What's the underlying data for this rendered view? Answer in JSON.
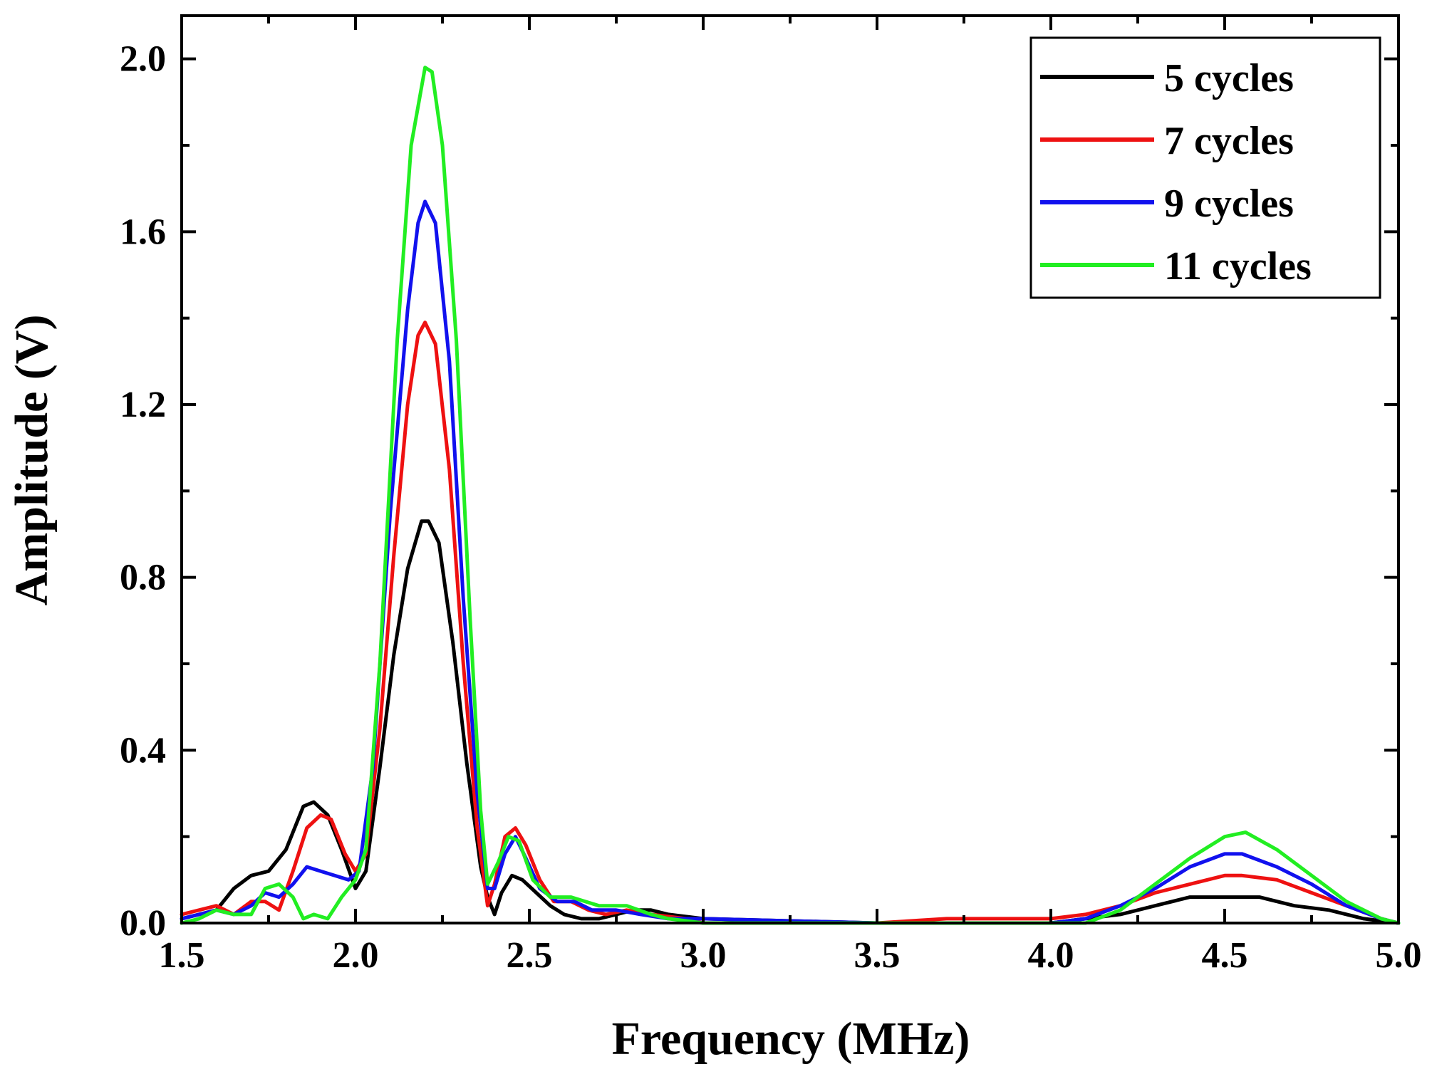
{
  "chart_data": {
    "type": "line",
    "title": "",
    "xlabel": "Frequency (MHz)",
    "ylabel": "Amplitude (V)",
    "xlim": [
      1.5,
      5.0
    ],
    "ylim": [
      0.0,
      2.1
    ],
    "xticks": [
      1.5,
      2.0,
      2.5,
      3.0,
      3.5,
      4.0,
      4.5,
      5.0
    ],
    "xtick_labels": [
      "1.5",
      "2.0",
      "2.5",
      "3.0",
      "3.5",
      "4.0",
      "4.5",
      "5.0"
    ],
    "yticks": [
      0.0,
      0.4,
      0.8,
      1.2,
      1.6,
      2.0
    ],
    "ytick_labels": [
      "0.0",
      "0.4",
      "0.8",
      "1.2",
      "1.6",
      "2.0"
    ],
    "grid": false,
    "legend_position": "top-right",
    "series": [
      {
        "name": "5 cycles",
        "color": "#000000",
        "points": [
          [
            1.5,
            0.01
          ],
          [
            1.55,
            0.02
          ],
          [
            1.6,
            0.03
          ],
          [
            1.65,
            0.08
          ],
          [
            1.7,
            0.11
          ],
          [
            1.75,
            0.12
          ],
          [
            1.8,
            0.17
          ],
          [
            1.85,
            0.27
          ],
          [
            1.88,
            0.28
          ],
          [
            1.92,
            0.25
          ],
          [
            1.96,
            0.17
          ],
          [
            2.0,
            0.08
          ],
          [
            2.03,
            0.12
          ],
          [
            2.07,
            0.36
          ],
          [
            2.11,
            0.62
          ],
          [
            2.15,
            0.82
          ],
          [
            2.19,
            0.93
          ],
          [
            2.21,
            0.93
          ],
          [
            2.24,
            0.88
          ],
          [
            2.28,
            0.65
          ],
          [
            2.32,
            0.37
          ],
          [
            2.36,
            0.13
          ],
          [
            2.38,
            0.06
          ],
          [
            2.4,
            0.02
          ],
          [
            2.42,
            0.07
          ],
          [
            2.45,
            0.11
          ],
          [
            2.48,
            0.1
          ],
          [
            2.52,
            0.07
          ],
          [
            2.56,
            0.04
          ],
          [
            2.6,
            0.02
          ],
          [
            2.65,
            0.01
          ],
          [
            2.7,
            0.01
          ],
          [
            2.75,
            0.02
          ],
          [
            2.8,
            0.03
          ],
          [
            2.85,
            0.03
          ],
          [
            2.9,
            0.02
          ],
          [
            3.0,
            0.01
          ],
          [
            3.5,
            0.0
          ],
          [
            4.0,
            0.0
          ],
          [
            4.1,
            0.01
          ],
          [
            4.2,
            0.02
          ],
          [
            4.3,
            0.04
          ],
          [
            4.4,
            0.06
          ],
          [
            4.5,
            0.06
          ],
          [
            4.55,
            0.06
          ],
          [
            4.6,
            0.06
          ],
          [
            4.7,
            0.04
          ],
          [
            4.8,
            0.03
          ],
          [
            4.9,
            0.01
          ],
          [
            5.0,
            0.0
          ]
        ]
      },
      {
        "name": "7 cycles",
        "color": "#ee1111",
        "points": [
          [
            1.5,
            0.02
          ],
          [
            1.55,
            0.03
          ],
          [
            1.6,
            0.04
          ],
          [
            1.65,
            0.02
          ],
          [
            1.7,
            0.05
          ],
          [
            1.74,
            0.05
          ],
          [
            1.78,
            0.03
          ],
          [
            1.82,
            0.12
          ],
          [
            1.86,
            0.22
          ],
          [
            1.9,
            0.25
          ],
          [
            1.93,
            0.24
          ],
          [
            1.97,
            0.16
          ],
          [
            2.0,
            0.12
          ],
          [
            2.03,
            0.16
          ],
          [
            2.07,
            0.45
          ],
          [
            2.11,
            0.85
          ],
          [
            2.15,
            1.2
          ],
          [
            2.18,
            1.36
          ],
          [
            2.2,
            1.39
          ],
          [
            2.23,
            1.34
          ],
          [
            2.27,
            1.05
          ],
          [
            2.31,
            0.6
          ],
          [
            2.35,
            0.22
          ],
          [
            2.38,
            0.04
          ],
          [
            2.4,
            0.09
          ],
          [
            2.43,
            0.2
          ],
          [
            2.46,
            0.22
          ],
          [
            2.49,
            0.18
          ],
          [
            2.53,
            0.1
          ],
          [
            2.57,
            0.05
          ],
          [
            2.62,
            0.05
          ],
          [
            2.67,
            0.03
          ],
          [
            2.72,
            0.02
          ],
          [
            2.78,
            0.03
          ],
          [
            2.85,
            0.02
          ],
          [
            2.95,
            0.01
          ],
          [
            3.0,
            0.0
          ],
          [
            3.5,
            0.0
          ],
          [
            3.7,
            0.01
          ],
          [
            4.0,
            0.01
          ],
          [
            4.1,
            0.02
          ],
          [
            4.2,
            0.04
          ],
          [
            4.3,
            0.07
          ],
          [
            4.4,
            0.09
          ],
          [
            4.5,
            0.11
          ],
          [
            4.55,
            0.11
          ],
          [
            4.65,
            0.1
          ],
          [
            4.75,
            0.07
          ],
          [
            4.85,
            0.04
          ],
          [
            4.95,
            0.01
          ],
          [
            5.0,
            0.0
          ]
        ]
      },
      {
        "name": "9 cycles",
        "color": "#1111ee",
        "points": [
          [
            1.5,
            0.01
          ],
          [
            1.55,
            0.02
          ],
          [
            1.6,
            0.03
          ],
          [
            1.65,
            0.02
          ],
          [
            1.7,
            0.04
          ],
          [
            1.74,
            0.07
          ],
          [
            1.78,
            0.06
          ],
          [
            1.82,
            0.09
          ],
          [
            1.86,
            0.13
          ],
          [
            1.9,
            0.12
          ],
          [
            1.94,
            0.11
          ],
          [
            1.98,
            0.1
          ],
          [
            2.01,
            0.12
          ],
          [
            2.05,
            0.36
          ],
          [
            2.1,
            0.95
          ],
          [
            2.15,
            1.42
          ],
          [
            2.18,
            1.62
          ],
          [
            2.2,
            1.67
          ],
          [
            2.23,
            1.62
          ],
          [
            2.27,
            1.3
          ],
          [
            2.31,
            0.75
          ],
          [
            2.35,
            0.3
          ],
          [
            2.38,
            0.08
          ],
          [
            2.4,
            0.08
          ],
          [
            2.43,
            0.16
          ],
          [
            2.46,
            0.2
          ],
          [
            2.49,
            0.15
          ],
          [
            2.53,
            0.08
          ],
          [
            2.58,
            0.05
          ],
          [
            2.63,
            0.05
          ],
          [
            2.68,
            0.03
          ],
          [
            2.75,
            0.03
          ],
          [
            2.82,
            0.02
          ],
          [
            2.9,
            0.01
          ],
          [
            3.0,
            0.01
          ],
          [
            3.5,
            0.0
          ],
          [
            4.0,
            0.0
          ],
          [
            4.1,
            0.01
          ],
          [
            4.2,
            0.04
          ],
          [
            4.3,
            0.08
          ],
          [
            4.4,
            0.13
          ],
          [
            4.5,
            0.16
          ],
          [
            4.55,
            0.16
          ],
          [
            4.65,
            0.13
          ],
          [
            4.75,
            0.09
          ],
          [
            4.85,
            0.04
          ],
          [
            4.95,
            0.01
          ],
          [
            5.0,
            0.0
          ]
        ]
      },
      {
        "name": "11 cycles",
        "color": "#22ee22",
        "points": [
          [
            1.5,
            0.0
          ],
          [
            1.55,
            0.01
          ],
          [
            1.6,
            0.03
          ],
          [
            1.65,
            0.02
          ],
          [
            1.7,
            0.02
          ],
          [
            1.74,
            0.08
          ],
          [
            1.78,
            0.09
          ],
          [
            1.82,
            0.06
          ],
          [
            1.85,
            0.01
          ],
          [
            1.88,
            0.02
          ],
          [
            1.92,
            0.01
          ],
          [
            1.96,
            0.06
          ],
          [
            2.0,
            0.1
          ],
          [
            2.03,
            0.17
          ],
          [
            2.07,
            0.6
          ],
          [
            2.12,
            1.35
          ],
          [
            2.16,
            1.8
          ],
          [
            2.2,
            1.98
          ],
          [
            2.22,
            1.97
          ],
          [
            2.25,
            1.8
          ],
          [
            2.29,
            1.35
          ],
          [
            2.33,
            0.7
          ],
          [
            2.36,
            0.26
          ],
          [
            2.38,
            0.09
          ],
          [
            2.41,
            0.14
          ],
          [
            2.44,
            0.2
          ],
          [
            2.47,
            0.19
          ],
          [
            2.51,
            0.1
          ],
          [
            2.56,
            0.06
          ],
          [
            2.62,
            0.06
          ],
          [
            2.7,
            0.04
          ],
          [
            2.78,
            0.04
          ],
          [
            2.85,
            0.02
          ],
          [
            2.9,
            0.01
          ],
          [
            3.0,
            0.0
          ],
          [
            3.5,
            0.0
          ],
          [
            4.0,
            0.0
          ],
          [
            4.1,
            0.0
          ],
          [
            4.2,
            0.03
          ],
          [
            4.3,
            0.09
          ],
          [
            4.4,
            0.15
          ],
          [
            4.5,
            0.2
          ],
          [
            4.56,
            0.21
          ],
          [
            4.65,
            0.17
          ],
          [
            4.75,
            0.11
          ],
          [
            4.85,
            0.05
          ],
          [
            4.95,
            0.01
          ],
          [
            5.0,
            0.0
          ]
        ]
      }
    ]
  }
}
